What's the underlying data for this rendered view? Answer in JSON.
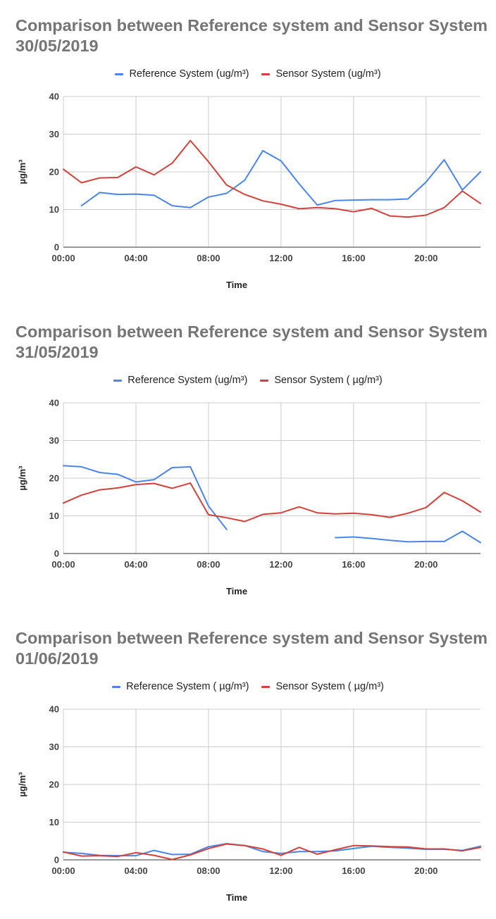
{
  "chart_data": [
    {
      "type": "line",
      "title": "Comparison between  Reference system and Sensor System 30/05/2019",
      "xlabel": "Time",
      "ylabel": "µg/m³",
      "ylim": [
        0,
        40
      ],
      "yticks": [
        "0",
        "10",
        "20",
        "30",
        "40"
      ],
      "xticks": [
        "00:00",
        "04:00",
        "08:00",
        "12:00",
        "16:00",
        "20:00"
      ],
      "x_hours": [
        0,
        1,
        2,
        3,
        4,
        5,
        6,
        7,
        8,
        9,
        10,
        11,
        12,
        13,
        14,
        15,
        16,
        17,
        18,
        19,
        20,
        21,
        22,
        23
      ],
      "grid": true,
      "legend_position": "top",
      "series": [
        {
          "name": "Reference System (ug/m³)",
          "color": "#4a86e8",
          "values": [
            null,
            11.0,
            14.5,
            14.0,
            14.1,
            13.8,
            11.0,
            10.5,
            13.3,
            14.3,
            17.8,
            25.6,
            22.9,
            16.8,
            11.2,
            12.4,
            12.5,
            12.6,
            12.6,
            12.8,
            17.3,
            23.2,
            15.2,
            20.0
          ]
        },
        {
          "name": "Sensor System (ug/m³)",
          "color": "#d2423b",
          "values": [
            20.7,
            17.1,
            18.4,
            18.5,
            21.3,
            19.2,
            22.3,
            28.3,
            22.7,
            16.5,
            14.0,
            12.3,
            11.4,
            10.2,
            10.5,
            10.2,
            9.4,
            10.3,
            8.3,
            8.0,
            8.5,
            10.5,
            14.9,
            11.6
          ]
        }
      ]
    },
    {
      "type": "line",
      "title": "Comparison between  Reference system and Sensor System 31/05/2019",
      "xlabel": "Time",
      "ylabel": "µg/m³",
      "ylim": [
        0,
        40
      ],
      "yticks": [
        "0",
        "10",
        "20",
        "30",
        "40"
      ],
      "xticks": [
        "00:00",
        "04:00",
        "08:00",
        "12:00",
        "16:00",
        "20:00"
      ],
      "x_hours": [
        0,
        1,
        2,
        3,
        4,
        5,
        6,
        7,
        8,
        9,
        10,
        11,
        12,
        13,
        14,
        15,
        16,
        17,
        18,
        19,
        20,
        21,
        22,
        23
      ],
      "grid": true,
      "legend_position": "top",
      "series": [
        {
          "name": "Reference System (ug/m³)",
          "color": "#4a86e8",
          "values": [
            23.3,
            23.0,
            21.5,
            21.0,
            19.0,
            19.6,
            22.8,
            23.0,
            12.6,
            6.4,
            null,
            null,
            null,
            null,
            null,
            4.2,
            4.4,
            4.0,
            3.5,
            3.1,
            3.2,
            3.2,
            5.9,
            2.9
          ]
        },
        {
          "name": "Sensor System ( µg/m³)",
          "color": "#d2423b",
          "values": [
            13.4,
            15.5,
            16.9,
            17.4,
            18.3,
            18.6,
            17.3,
            18.7,
            10.3,
            9.5,
            8.5,
            10.4,
            10.8,
            12.4,
            10.8,
            10.5,
            10.7,
            10.3,
            9.6,
            10.7,
            12.2,
            16.2,
            14.0,
            11.0
          ]
        }
      ]
    },
    {
      "type": "line",
      "title": "Comparison between  Reference system and Sensor System 01/06/2019",
      "xlabel": "Time",
      "ylabel": "µg/m³",
      "ylim": [
        0,
        40
      ],
      "yticks": [
        "0",
        "10",
        "20",
        "30",
        "40"
      ],
      "xticks": [
        "00:00",
        "04:00",
        "08:00",
        "12:00",
        "16:00",
        "20:00"
      ],
      "x_hours": [
        0,
        1,
        2,
        3,
        4,
        5,
        6,
        7,
        8,
        9,
        10,
        11,
        12,
        13,
        14,
        15,
        16,
        17,
        18,
        19,
        20,
        21,
        22,
        23
      ],
      "grid": true,
      "legend_position": "top",
      "series": [
        {
          "name": "Reference System ( µg/m³)",
          "color": "#4a86e8",
          "values": [
            2.0,
            1.7,
            1.2,
            1.1,
            1.1,
            2.5,
            1.4,
            1.5,
            3.5,
            4.3,
            3.8,
            2.2,
            1.7,
            2.2,
            2.2,
            2.4,
            3.0,
            3.6,
            3.3,
            3.1,
            2.8,
            2.8,
            2.5,
            3.6
          ]
        },
        {
          "name": "Sensor System ( µg/m³)",
          "color": "#d2423b",
          "values": [
            2.1,
            1.0,
            1.1,
            0.9,
            1.9,
            1.2,
            0.1,
            1.3,
            3.0,
            4.2,
            3.8,
            2.9,
            1.2,
            3.3,
            1.5,
            2.7,
            3.8,
            3.7,
            3.5,
            3.4,
            2.9,
            2.9,
            2.4,
            3.3
          ]
        }
      ]
    }
  ]
}
